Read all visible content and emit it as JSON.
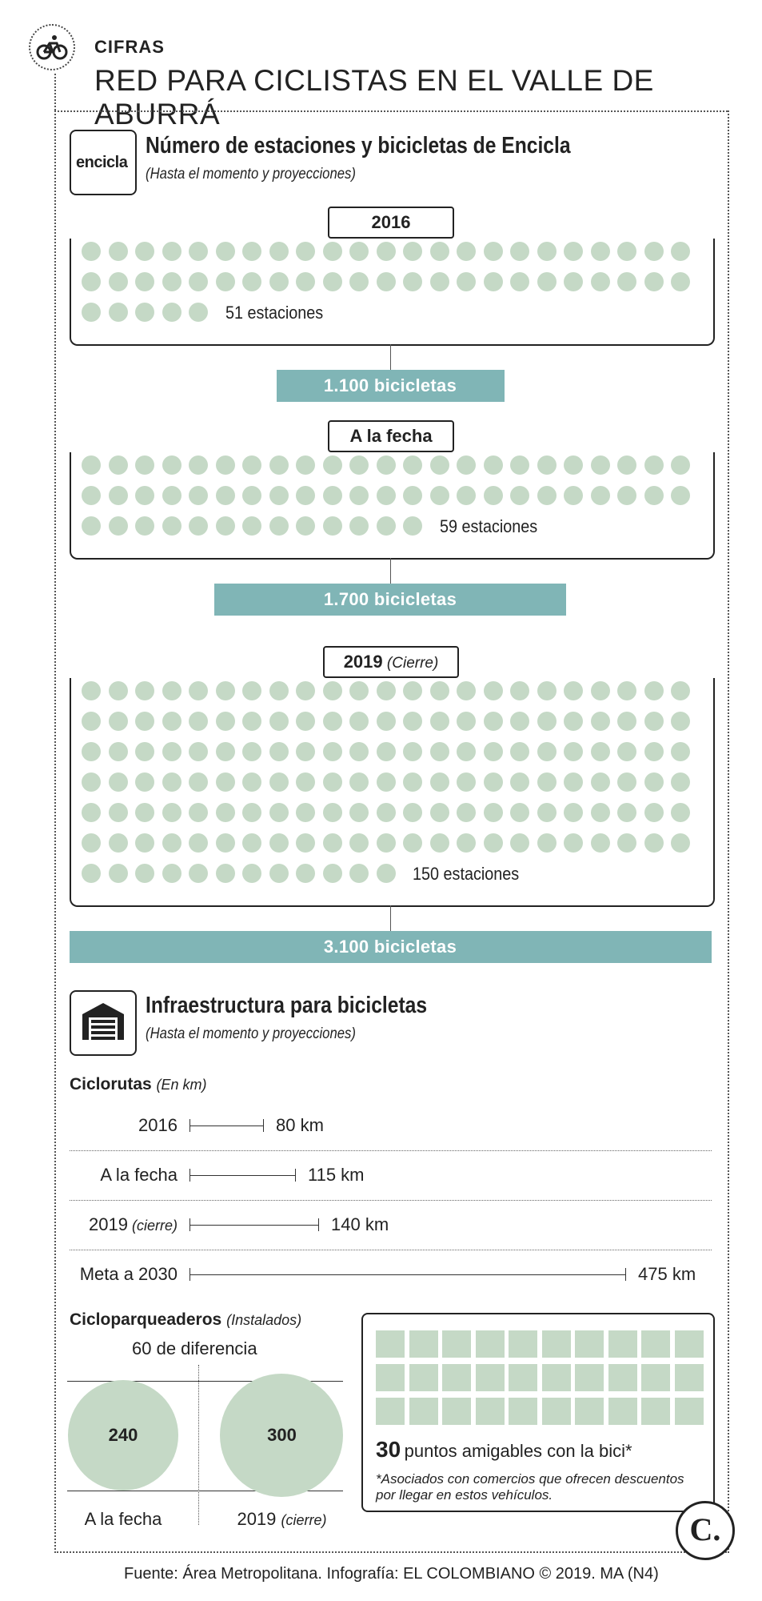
{
  "header": {
    "kicker": "CIFRAS",
    "headline": "RED PARA CICLISTAS EN EL VALLE DE ABURRÁ"
  },
  "encicla": {
    "logo_text": "encicla",
    "title": "Número de estaciones y bicicletas de Encicla",
    "subtitle": "(Hasta el momento y proyecciones)"
  },
  "chart_data": [
    {
      "type": "pictograph",
      "title": "Número de estaciones y bicicletas de Encicla",
      "subtitle": "(Hasta el momento y proyecciones)",
      "categories": [
        "2016",
        "A la fecha",
        "2019 (Cierre)"
      ],
      "series": [
        {
          "name": "estaciones",
          "values": [
            51,
            59,
            150
          ]
        },
        {
          "name": "bicicletas",
          "values": [
            1100,
            1700,
            3100
          ]
        }
      ],
      "periods": [
        {
          "label": "2016",
          "label_note": "",
          "stations": 51,
          "stations_label": "51 estaciones",
          "bikes": 1100,
          "bikes_label": "1.100 bicicletas",
          "bar_fraction": 0.355
        },
        {
          "label": "A la fecha",
          "label_note": "",
          "stations": 59,
          "stations_label": "59 estaciones",
          "bikes": 1700,
          "bikes_label": "1.700 bicicletas",
          "bar_fraction": 0.548
        },
        {
          "label": "2019",
          "label_note": "(Cierre)",
          "stations": 150,
          "stations_label": "150 estaciones",
          "bikes": 3100,
          "bikes_label": "3.100 bicicletas",
          "bar_fraction": 1.0
        }
      ]
    },
    {
      "type": "bar",
      "title": "Ciclorutas",
      "unit": "(En km)",
      "categories": [
        "2016",
        "A la fecha",
        "2019 (cierre)",
        "Meta a 2030"
      ],
      "values": [
        80,
        115,
        140,
        475
      ],
      "value_labels": [
        "80 km",
        "115 km",
        "140 km",
        "475 km"
      ],
      "label_notes": [
        "",
        "",
        "(cierre)",
        ""
      ],
      "label_main": [
        "2016",
        "A la fecha",
        "2019",
        "Meta a 2030"
      ]
    },
    {
      "type": "bubble",
      "title": "Cicloparqueaderos",
      "unit": "(Instalados)",
      "annotation": "60 de diferencia",
      "categories": [
        "A la fecha",
        "2019 (cierre)"
      ],
      "values": [
        240,
        300
      ]
    },
    {
      "type": "pictograph",
      "count": 30,
      "count_label": "30",
      "label": "puntos amigables con la bici*",
      "note": "*Asociados con comercios que ofrecen descuentos por llegar en estos vehículos."
    }
  ],
  "infra": {
    "title": "Infraestructura para bicicletas",
    "subtitle": "(Hasta el momento y proyecciones)"
  },
  "parking": {
    "left_main": "A la fecha",
    "right_main": "2019",
    "right_note": "(cierre)"
  },
  "footer": {
    "source": "Fuente: Área Metropolitana. Infografía: EL COLOMBIANO © 2019. MA (N4)",
    "brand_letter": "C."
  },
  "colors": {
    "dot": "#c5d9c6",
    "bar": "#80b5b6",
    "ink": "#222222"
  }
}
